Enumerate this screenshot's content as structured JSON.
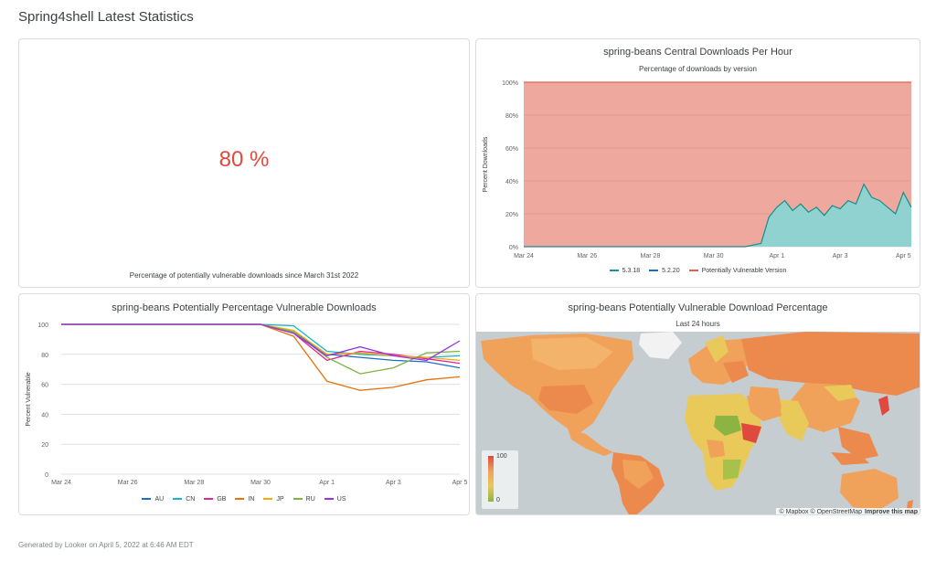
{
  "page": {
    "title": "Spring4shell Latest Statistics",
    "footer": "Generated by Looker on April 5, 2022 at 6:46 AM EDT"
  },
  "kpi": {
    "value": "80 %",
    "caption": "Percentage of potentially vulnerable downloads since March 31st 2022",
    "value_color": "#e0493e"
  },
  "area_tile": {
    "title": "spring-beans Central Downloads Per Hour",
    "subtitle": "Percentage of downloads by version"
  },
  "line_tile": {
    "title": "spring-beans Potentially Percentage Vulnerable Downloads"
  },
  "map_tile": {
    "title": "spring-beans Potentially Vulnerable Download Percentage",
    "subtitle": "Last 24 hours",
    "legend_max": "100",
    "legend_min": "0",
    "attribution": "© Mapbox © OpenStreetMap",
    "improve_link": "Improve this map"
  },
  "chart_data": [
    {
      "type": "area",
      "title": "spring-beans Central Downloads Per Hour",
      "subtitle": "Percentage of downloads by version",
      "xlabel": "",
      "ylabel": "Percent Downloads",
      "x_ticks": [
        "Mar 24",
        "Mar 26",
        "Mar 28",
        "Mar 30",
        "Apr 1",
        "Apr 3",
        "Apr 5"
      ],
      "y_ticks": [
        "0%",
        "20%",
        "40%",
        "60%",
        "80%",
        "100%"
      ],
      "ylim": [
        0,
        100
      ],
      "stacked_percent": true,
      "grid": true,
      "legend_position": "bottom",
      "series": [
        {
          "name": "5.3.18",
          "color": "#1a8c8a"
        },
        {
          "name": "5.2.20",
          "color": "#1c6fc4"
        },
        {
          "name": "Potentially Vulnerable Version",
          "color": "#e0614f"
        }
      ],
      "x": [
        "2022-03-24",
        "2022-03-25",
        "2022-03-26",
        "2022-03-27",
        "2022-03-28",
        "2022-03-29",
        "2022-03-30",
        "2022-03-31T00:00",
        "2022-03-31T12:00",
        "2022-03-31T18:00",
        "2022-04-01T00:00",
        "2022-04-01T06:00",
        "2022-04-01T12:00",
        "2022-04-01T18:00",
        "2022-04-02T00:00",
        "2022-04-02T06:00",
        "2022-04-02T12:00",
        "2022-04-02T18:00",
        "2022-04-03T00:00",
        "2022-04-03T06:00",
        "2022-04-03T12:00",
        "2022-04-03T18:00",
        "2022-04-04T00:00",
        "2022-04-04T06:00",
        "2022-04-04T12:00",
        "2022-04-04T18:00",
        "2022-04-05T00:00",
        "2022-04-05T06:00"
      ],
      "patched_pct": [
        0,
        0,
        0,
        0,
        0,
        0,
        0,
        0,
        2,
        18,
        24,
        28,
        22,
        26,
        21,
        24,
        19,
        25,
        23,
        28,
        26,
        38,
        30,
        28,
        24,
        20,
        33,
        24
      ]
    },
    {
      "type": "line",
      "title": "spring-beans Potentially Percentage Vulnerable Downloads",
      "xlabel": "",
      "ylabel": "Percent Vulnerable",
      "x_ticks": [
        "Mar 24",
        "Mar 26",
        "Mar 28",
        "Mar 30",
        "Apr 1",
        "Apr 3",
        "Apr 5"
      ],
      "y_ticks": [
        "0",
        "20",
        "40",
        "60",
        "80",
        "100"
      ],
      "ylim": [
        0,
        100
      ],
      "grid": true,
      "legend_position": "bottom",
      "x": [
        "Mar 24",
        "Mar 25",
        "Mar 26",
        "Mar 27",
        "Mar 28",
        "Mar 29",
        "Mar 30",
        "Mar 31",
        "Apr 1",
        "Apr 2",
        "Apr 3",
        "Apr 4",
        "Apr 5"
      ],
      "series": [
        {
          "name": "AU",
          "color": "#1c6fc4",
          "values": [
            100,
            100,
            100,
            100,
            100,
            100,
            100,
            95,
            80,
            78,
            76,
            75,
            71
          ]
        },
        {
          "name": "CN",
          "color": "#12b5cb",
          "values": [
            100,
            100,
            100,
            100,
            100,
            100,
            100,
            99,
            82,
            80,
            79,
            78,
            79
          ]
        },
        {
          "name": "GB",
          "color": "#e52592",
          "values": [
            100,
            100,
            100,
            100,
            100,
            100,
            100,
            94,
            76,
            82,
            80,
            77,
            74
          ]
        },
        {
          "name": "IN",
          "color": "#e8710a",
          "values": [
            100,
            100,
            100,
            100,
            100,
            100,
            100,
            92,
            62,
            56,
            58,
            63,
            65
          ]
        },
        {
          "name": "JP",
          "color": "#f9ab00",
          "values": [
            100,
            100,
            100,
            100,
            100,
            100,
            100,
            96,
            80,
            81,
            79,
            78,
            76
          ]
        },
        {
          "name": "RU",
          "color": "#7cb342",
          "values": [
            100,
            100,
            100,
            100,
            100,
            100,
            100,
            95,
            78,
            67,
            71,
            81,
            82
          ]
        },
        {
          "name": "US",
          "color": "#9334e6",
          "values": [
            100,
            100,
            100,
            100,
            100,
            100,
            100,
            94,
            79,
            85,
            79,
            76,
            89
          ]
        }
      ]
    }
  ]
}
